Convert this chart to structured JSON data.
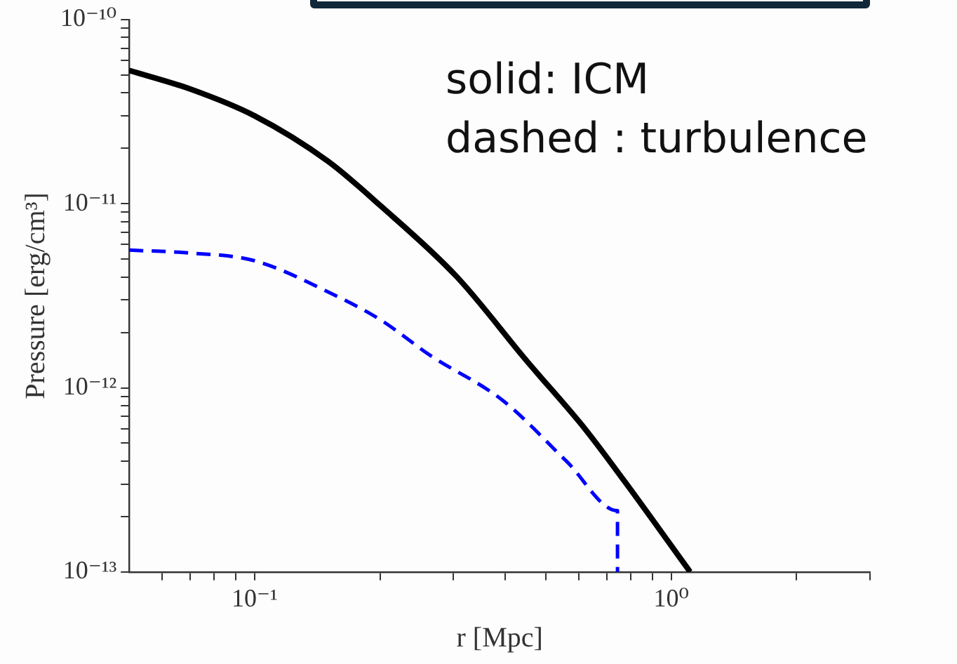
{
  "chart_data": {
    "type": "line",
    "xlabel": "r [Mpc]",
    "ylabel": "Pressure [erg/cm³]",
    "log": "xy",
    "grid": false,
    "legend": false,
    "annotations": [
      "solid: ICM",
      "dashed : turbulence"
    ],
    "xlim": [
      0.05,
      3
    ],
    "ylim": [
      1e-13,
      1e-10
    ],
    "xticks": [
      {
        "value": 0.06,
        "label": null
      },
      {
        "value": 0.07,
        "label": null
      },
      {
        "value": 0.08,
        "label": null
      },
      {
        "value": 0.09,
        "label": null
      },
      {
        "value": 0.1,
        "label": "10⁻¹"
      },
      {
        "value": 0.2,
        "label": null
      },
      {
        "value": 0.3,
        "label": null
      },
      {
        "value": 0.4,
        "label": null
      },
      {
        "value": 0.5,
        "label": null
      },
      {
        "value": 0.6,
        "label": null
      },
      {
        "value": 0.7,
        "label": null
      },
      {
        "value": 0.8,
        "label": null
      },
      {
        "value": 0.9,
        "label": null
      },
      {
        "value": 1,
        "label": "10⁰"
      },
      {
        "value": 2,
        "label": null
      },
      {
        "value": 3,
        "label": null
      }
    ],
    "yticks": [
      {
        "value": 1e-13,
        "label": "10⁻¹³"
      },
      {
        "value": 2e-13,
        "label": null
      },
      {
        "value": 3e-13,
        "label": null
      },
      {
        "value": 4e-13,
        "label": null
      },
      {
        "value": 5e-13,
        "label": null
      },
      {
        "value": 6e-13,
        "label": null
      },
      {
        "value": 7e-13,
        "label": null
      },
      {
        "value": 8e-13,
        "label": null
      },
      {
        "value": 9e-13,
        "label": null
      },
      {
        "value": 1e-12,
        "label": "10⁻¹²"
      },
      {
        "value": 2e-12,
        "label": null
      },
      {
        "value": 3e-12,
        "label": null
      },
      {
        "value": 4e-12,
        "label": null
      },
      {
        "value": 5e-12,
        "label": null
      },
      {
        "value": 6e-12,
        "label": null
      },
      {
        "value": 7e-12,
        "label": null
      },
      {
        "value": 8e-12,
        "label": null
      },
      {
        "value": 9e-12,
        "label": null
      },
      {
        "value": 1e-11,
        "label": "10⁻¹¹"
      },
      {
        "value": 2e-11,
        "label": null
      },
      {
        "value": 3e-11,
        "label": null
      },
      {
        "value": 4e-11,
        "label": null
      },
      {
        "value": 5e-11,
        "label": null
      },
      {
        "value": 6e-11,
        "label": null
      },
      {
        "value": 7e-11,
        "label": null
      },
      {
        "value": 8e-11,
        "label": null
      },
      {
        "value": 9e-11,
        "label": null
      },
      {
        "value": 1e-10,
        "label": "10⁻¹⁰"
      }
    ],
    "series": [
      {
        "color": "#000000",
        "line_style": "solid",
        "x": [
          0.05,
          0.07,
          0.1,
          0.15,
          0.2,
          0.306,
          0.45,
          0.624,
          0.773,
          1.11
        ],
        "values": [
          5.3e-11,
          4.2e-11,
          3e-11,
          1.7e-11,
          9.8e-12,
          4e-12,
          1.4e-12,
          5.9e-13,
          3.1e-13,
          1e-13
        ]
      },
      {
        "color": "#0000ff",
        "line_style": "dashed",
        "x": [
          0.05,
          0.07,
          0.1,
          0.155,
          0.2,
          0.264,
          0.395,
          0.56,
          0.743,
          0.743
        ],
        "values": [
          5.6e-12,
          5.4e-12,
          4.9e-12,
          3.2e-12,
          2.35e-12,
          1.5e-12,
          8.5e-13,
          4e-13,
          2.15e-13,
          1e-13
        ]
      }
    ]
  }
}
